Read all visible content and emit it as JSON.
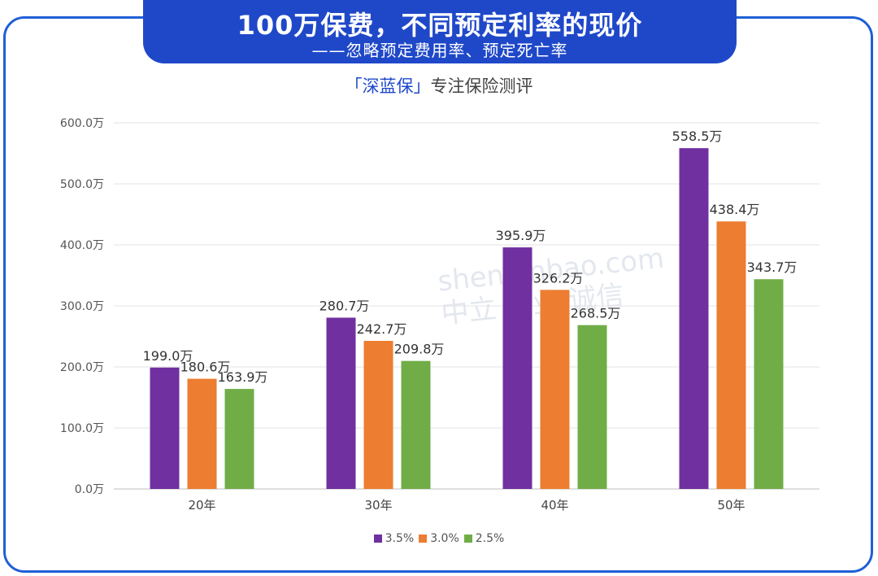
{
  "header": {
    "title": "100万保费，不同预定利率的现价",
    "subtitle": "——忽略预定费用率、预定死亡率"
  },
  "brand": {
    "highlight": "「深蓝保」",
    "text": "专注保险测评"
  },
  "watermark": {
    "line1": "shenlanbao.com",
    "line2": "中立 专业 诚信"
  },
  "colors": {
    "accent": "#1f48c9",
    "series": [
      "#7030a0",
      "#ed7d31",
      "#70ad47"
    ]
  },
  "chart_data": {
    "type": "bar",
    "categories": [
      "20年",
      "30年",
      "40年",
      "50年"
    ],
    "series": [
      {
        "name": "3.5%",
        "values": [
          199.0,
          280.7,
          395.9,
          558.5
        ],
        "labels": [
          "199.0万",
          "280.7万",
          "395.9万",
          "558.5万"
        ]
      },
      {
        "name": "3.0%",
        "values": [
          180.6,
          242.7,
          326.2,
          438.4
        ],
        "labels": [
          "180.6万",
          "242.7万",
          "326.2万",
          "438.4万"
        ]
      },
      {
        "name": "2.5%",
        "values": [
          163.9,
          209.8,
          268.5,
          343.7
        ],
        "labels": [
          "163.9万",
          "209.8万",
          "268.5万",
          "343.7万"
        ]
      }
    ],
    "yticks": [
      "0.0万",
      "100.0万",
      "200.0万",
      "300.0万",
      "400.0万",
      "500.0万",
      "600.0万"
    ],
    "ylim": [
      0,
      600
    ],
    "grid": true,
    "legend_position": "bottom"
  }
}
